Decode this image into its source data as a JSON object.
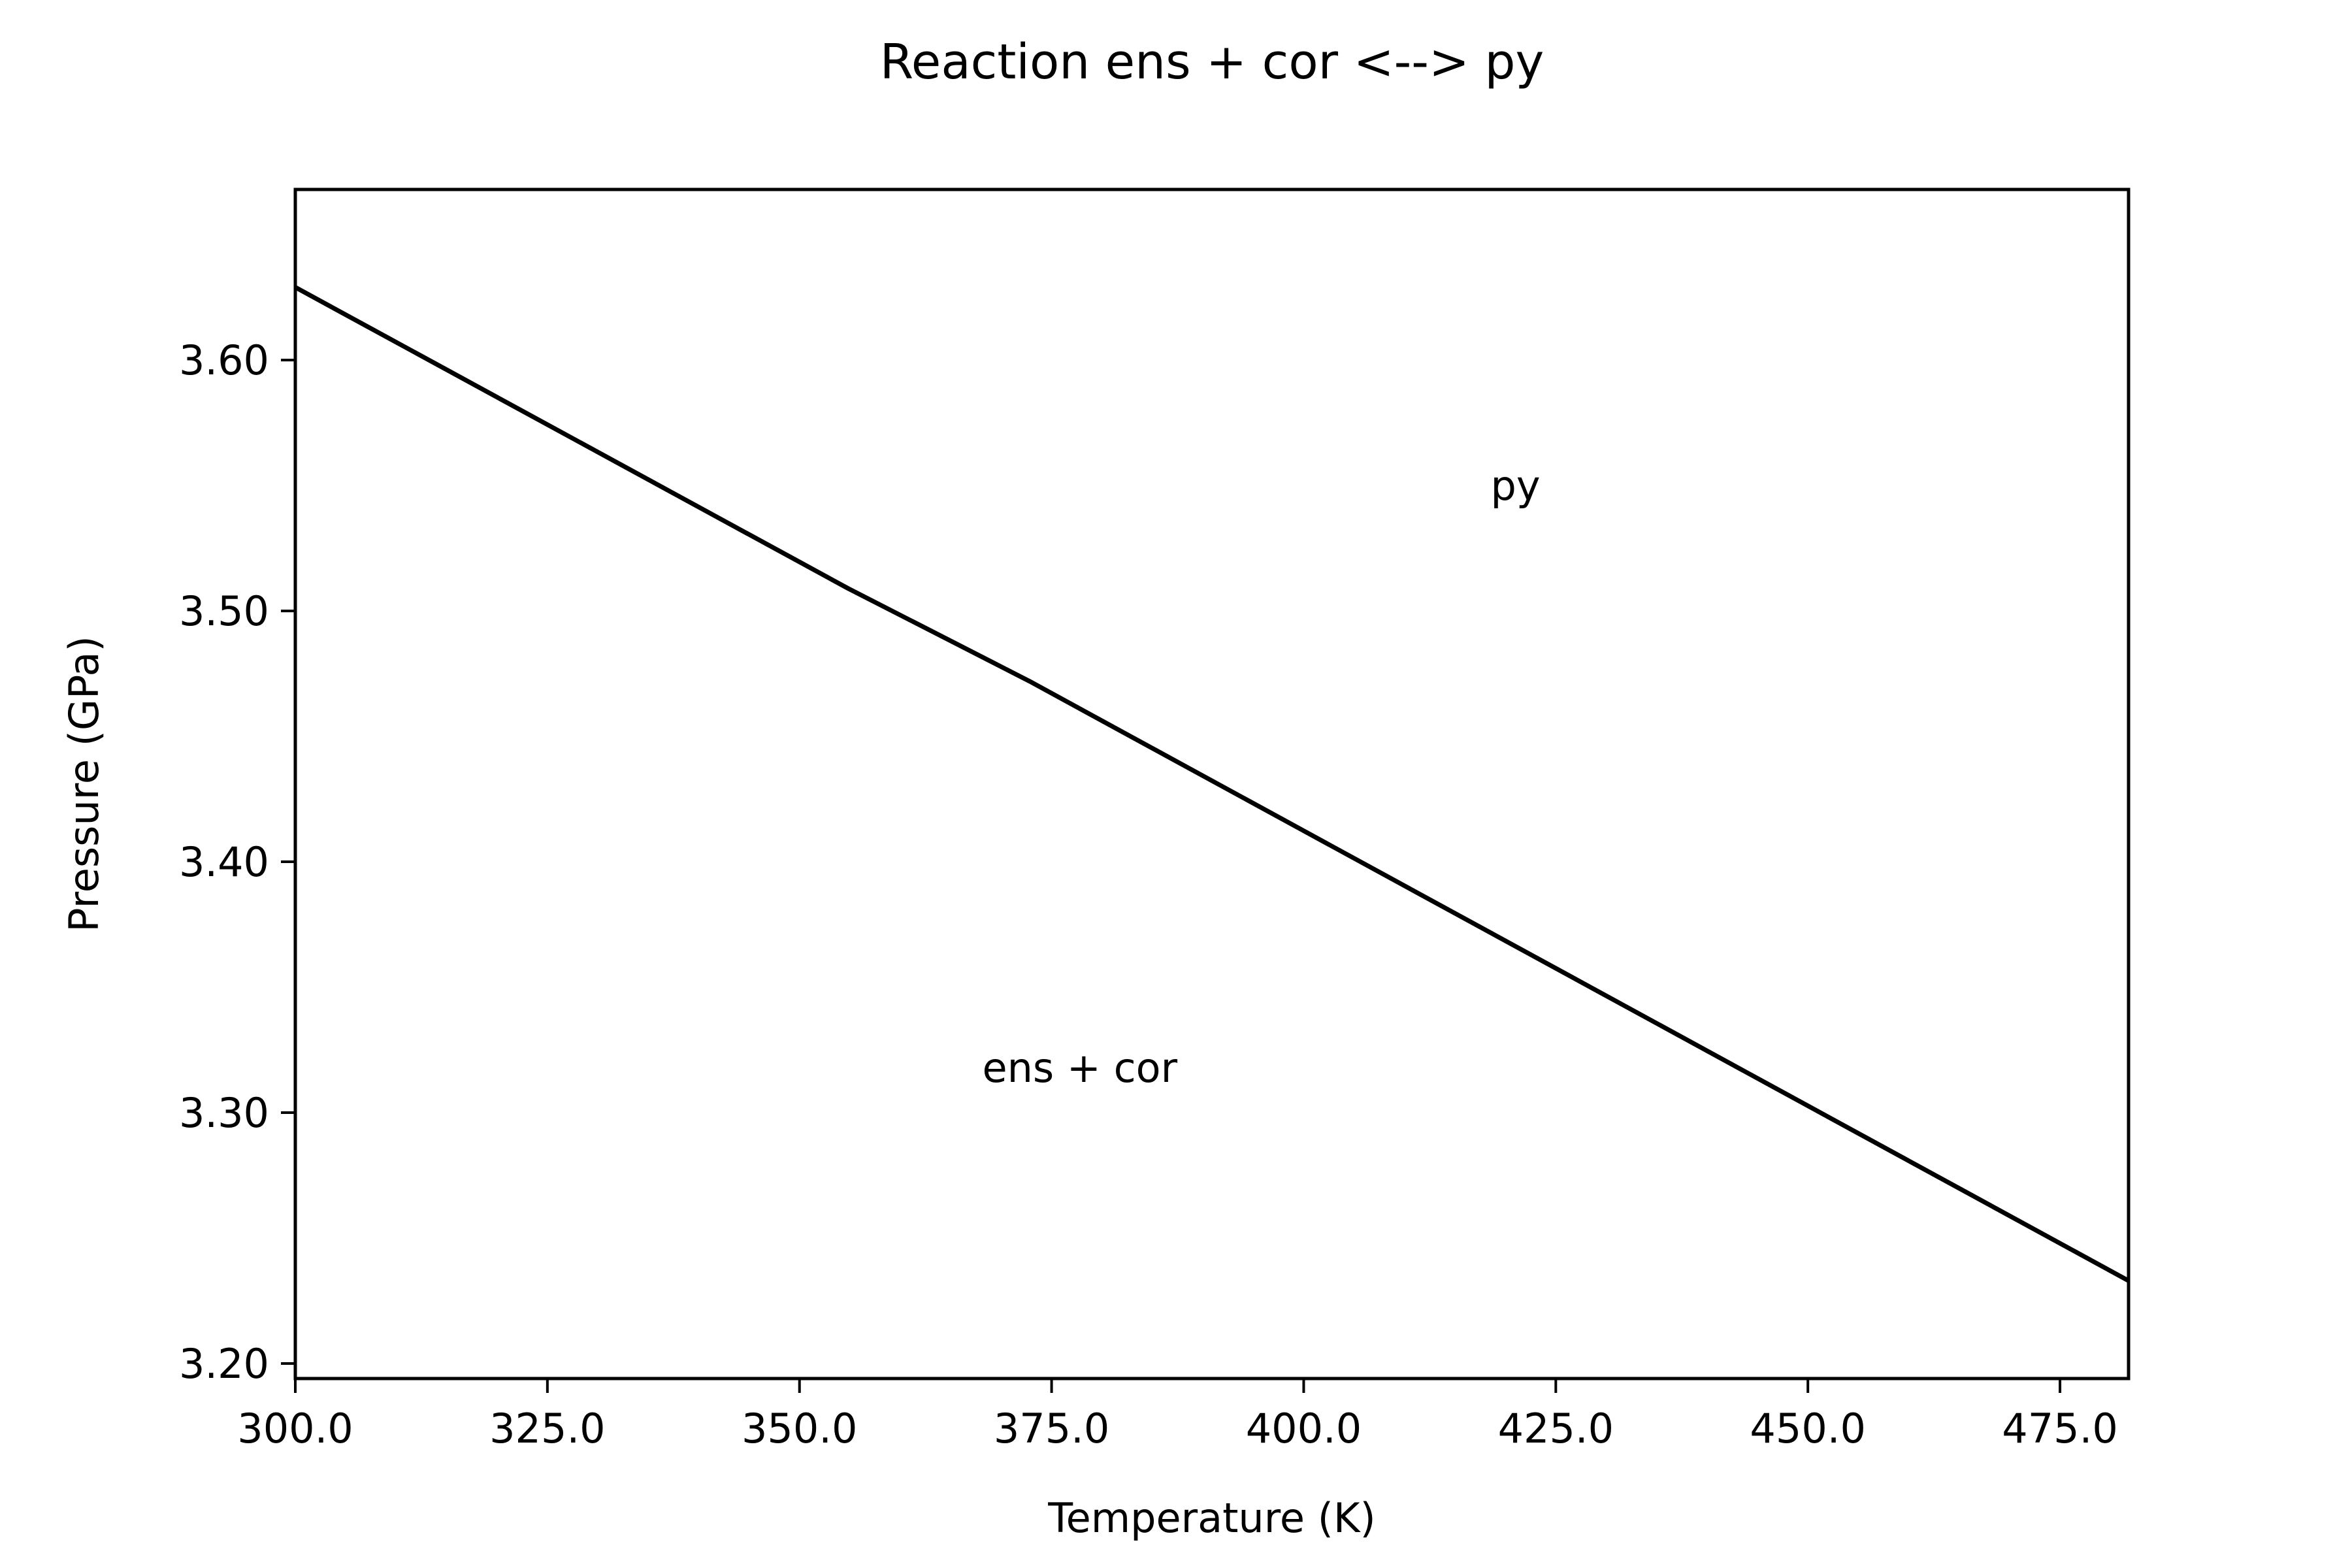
{
  "chart_data": {
    "type": "line",
    "title": "Reaction ens + cor <--> py",
    "xlabel": "Temperature (K)",
    "ylabel": "Pressure (GPa)",
    "xlim": [
      300.0,
      481.8
    ],
    "ylim": [
      3.194,
      3.668
    ],
    "x_ticks": [
      300.0,
      325.0,
      350.0,
      375.0,
      400.0,
      425.0,
      450.0,
      475.0
    ],
    "x_tick_labels": [
      "300.0",
      "325.0",
      "350.0",
      "375.0",
      "400.0",
      "425.0",
      "450.0",
      "475.0"
    ],
    "y_ticks": [
      3.2,
      3.3,
      3.4,
      3.5,
      3.6
    ],
    "y_tick_labels": [
      "3.20",
      "3.30",
      "3.40",
      "3.50",
      "3.60"
    ],
    "grid": false,
    "series": [
      {
        "color": "#000000",
        "x": [
          300.0,
          354.8,
          372.8,
          481.8
        ],
        "y": [
          3.629,
          3.509,
          3.472,
          3.233
        ]
      }
    ],
    "annotations": [
      {
        "text": "py",
        "x": 421.0,
        "y": 3.55
      },
      {
        "text": "ens + cor",
        "x": 377.8,
        "y": 3.318
      }
    ]
  }
}
